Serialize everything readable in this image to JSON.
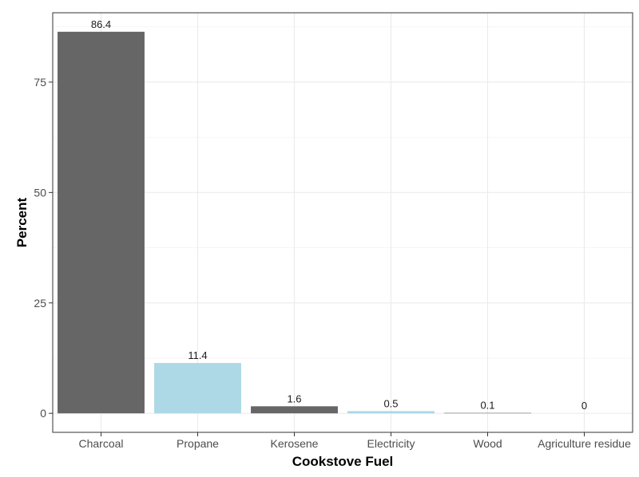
{
  "chart_data": {
    "type": "bar",
    "title": "",
    "xlabel": "Cookstove Fuel",
    "ylabel": "Percent",
    "categories": [
      "Charcoal",
      "Propane",
      "Kerosene",
      "Electricity",
      "Wood",
      "Agriculture residue"
    ],
    "values": [
      86.4,
      11.4,
      1.6,
      0.5,
      0.1,
      0
    ],
    "data_labels": [
      "86.4",
      "11.4",
      "1.6",
      "0.5",
      "0.1",
      "0"
    ],
    "bar_colors": [
      "#666666",
      "#add8e6",
      "#666666",
      "#add8e6",
      "#666666",
      "#add8e6"
    ],
    "ylim": [
      -4.3,
      90.7
    ],
    "y_ticks": [
      0,
      25,
      50,
      75
    ],
    "y_tick_labels": [
      "0",
      "25",
      "50",
      "75"
    ],
    "grid": true,
    "legend": "none"
  }
}
